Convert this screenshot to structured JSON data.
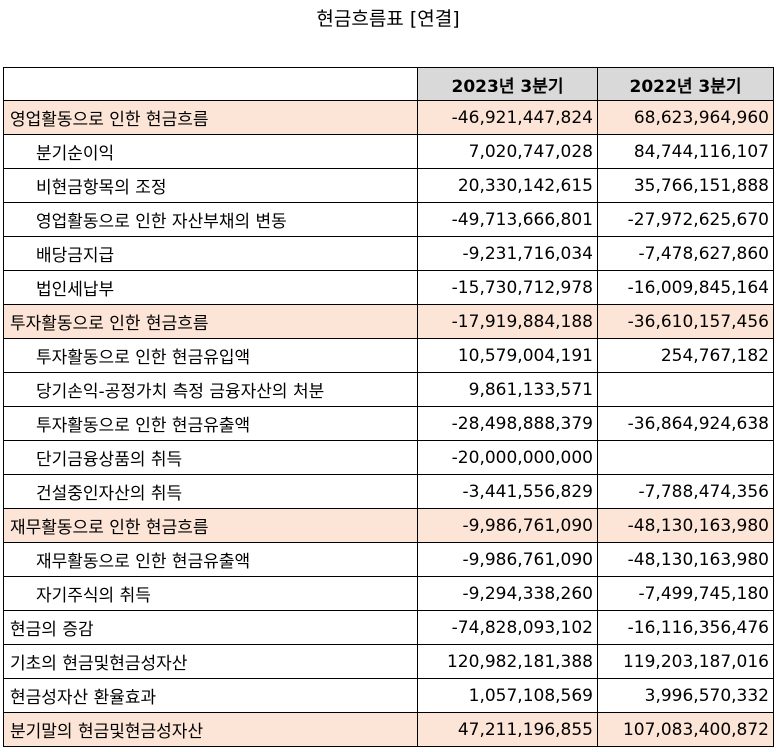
{
  "title": "현금흐름표 [연결]",
  "columns": [
    "2023년 3분기",
    "2022년 3분기"
  ],
  "colors": {
    "header_bg": "#d9d9d9",
    "highlight_bg": "#fce4d6",
    "border": "#000000"
  },
  "rows": [
    {
      "label": "영업활동으로 인한 현금흐름",
      "v2023": "-46,921,447,824",
      "v2022": "68,623,964,960",
      "highlight": true,
      "indent": false
    },
    {
      "label": "분기순이익",
      "v2023": "7,020,747,028",
      "v2022": "84,744,116,107",
      "highlight": false,
      "indent": true
    },
    {
      "label": "비현금항목의 조정",
      "v2023": "20,330,142,615",
      "v2022": "35,766,151,888",
      "highlight": false,
      "indent": true
    },
    {
      "label": "영업활동으로 인한 자산부채의 변동",
      "v2023": "-49,713,666,801",
      "v2022": "-27,972,625,670",
      "highlight": false,
      "indent": true
    },
    {
      "label": "배당금지급",
      "v2023": "-9,231,716,034",
      "v2022": "-7,478,627,860",
      "highlight": false,
      "indent": true
    },
    {
      "label": "법인세납부",
      "v2023": "-15,730,712,978",
      "v2022": "-16,009,845,164",
      "highlight": false,
      "indent": true
    },
    {
      "label": "투자활동으로 인한 현금흐름",
      "v2023": "-17,919,884,188",
      "v2022": "-36,610,157,456",
      "highlight": true,
      "indent": false
    },
    {
      "label": "투자활동으로 인한 현금유입액",
      "v2023": "10,579,004,191",
      "v2022": "254,767,182",
      "highlight": false,
      "indent": true
    },
    {
      "label": "당기손익-공정가치 측정 금융자산의 처분",
      "v2023": "9,861,133,571",
      "v2022": "",
      "highlight": false,
      "indent": true
    },
    {
      "label": "투자활동으로 인한 현금유출액",
      "v2023": "-28,498,888,379",
      "v2022": "-36,864,924,638",
      "highlight": false,
      "indent": true
    },
    {
      "label": "단기금융상품의 취득",
      "v2023": "-20,000,000,000",
      "v2022": "",
      "highlight": false,
      "indent": true
    },
    {
      "label": "건설중인자산의 취득",
      "v2023": "-3,441,556,829",
      "v2022": "-7,788,474,356",
      "highlight": false,
      "indent": true
    },
    {
      "label": "재무활동으로 인한 현금흐름",
      "v2023": "-9,986,761,090",
      "v2022": "-48,130,163,980",
      "highlight": true,
      "indent": false
    },
    {
      "label": "재무활동으로 인한 현금유출액",
      "v2023": "-9,986,761,090",
      "v2022": "-48,130,163,980",
      "highlight": false,
      "indent": true
    },
    {
      "label": "자기주식의 취득",
      "v2023": "-9,294,338,260",
      "v2022": "-7,499,745,180",
      "highlight": false,
      "indent": true
    },
    {
      "label": "현금의 증감",
      "v2023": "-74,828,093,102",
      "v2022": "-16,116,356,476",
      "highlight": false,
      "indent": false
    },
    {
      "label": "기초의 현금및현금성자산",
      "v2023": "120,982,181,388",
      "v2022": "119,203,187,016",
      "highlight": false,
      "indent": false
    },
    {
      "label": "현금성자산 환율효과",
      "v2023": "1,057,108,569",
      "v2022": "3,996,570,332",
      "highlight": false,
      "indent": false
    },
    {
      "label": "분기말의 현금및현금성자산",
      "v2023": "47,211,196,855",
      "v2022": "107,083,400,872",
      "highlight": true,
      "indent": false
    }
  ]
}
